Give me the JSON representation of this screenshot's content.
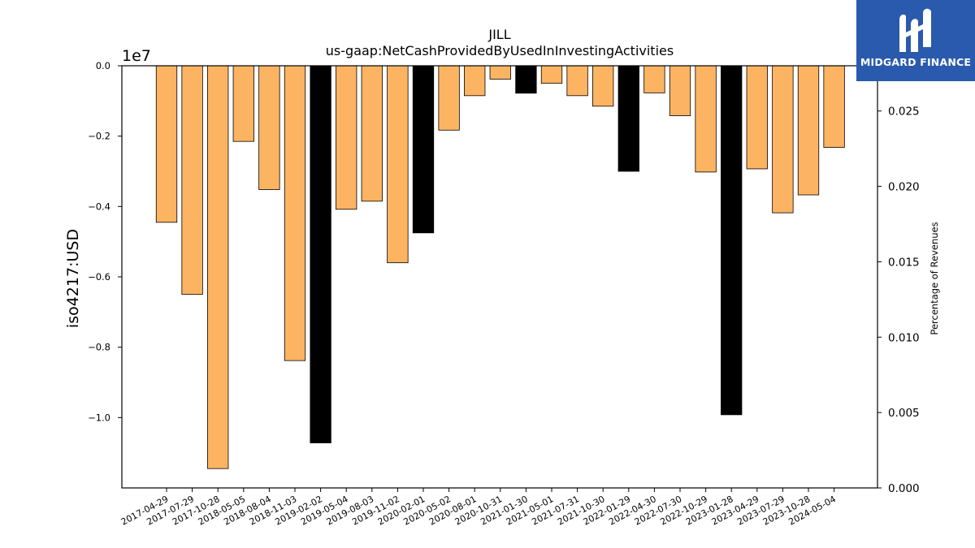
{
  "chart_data": {
    "type": "bar",
    "title": "JILL",
    "subtitle": "us-gaap:NetCashProvidedByUsedInInvestingActivities",
    "ylabel": "iso4217:USD",
    "y2label": "Percentage of Revenues",
    "y_offset_label": "1e7",
    "ylim": [
      -1.2,
      0.0
    ],
    "y_ticks": [
      0.0,
      -0.2,
      -0.4,
      -0.6,
      -0.8,
      -1.0
    ],
    "y_tick_labels": [
      "0.0",
      "−0.2",
      "−0.4",
      "−0.6",
      "−0.8",
      "−1.0"
    ],
    "y2lim": [
      0.0,
      0.028
    ],
    "y2_ticks": [
      0.0,
      0.005,
      0.01,
      0.015,
      0.02,
      0.025
    ],
    "y2_tick_labels": [
      "0.000",
      "0.005",
      "0.010",
      "0.015",
      "0.020",
      "0.025"
    ],
    "grid": false,
    "categories": [
      "2017-04-29",
      "2017-07-29",
      "2017-10-28",
      "2018-05-05",
      "2018-08-04",
      "2018-11-03",
      "2019-02-02",
      "2019-05-04",
      "2019-08-03",
      "2019-11-02",
      "2020-02-01",
      "2020-05-02",
      "2020-08-01",
      "2020-10-31",
      "2021-01-30",
      "2021-05-01",
      "2021-07-31",
      "2021-10-30",
      "2022-01-29",
      "2022-04-30",
      "2022-07-30",
      "2022-10-29",
      "2023-01-28",
      "2023-04-29",
      "2023-07-29",
      "2023-10-28",
      "2024-05-04"
    ],
    "values": [
      -0.445,
      -0.65,
      -1.145,
      -0.215,
      -0.352,
      -0.838,
      -1.072,
      -0.408,
      -0.385,
      -0.56,
      -0.475,
      -0.183,
      -0.085,
      -0.038,
      -0.078,
      -0.05,
      -0.085,
      -0.115,
      -0.3,
      -0.077,
      -0.142,
      -0.302,
      -0.992,
      -0.293,
      -0.418,
      -0.367,
      -0.232
    ],
    "annual_flags": [
      false,
      false,
      false,
      false,
      false,
      false,
      true,
      false,
      false,
      false,
      true,
      false,
      false,
      false,
      true,
      false,
      false,
      false,
      true,
      false,
      false,
      false,
      true,
      false,
      false,
      false,
      false
    ],
    "colors": {
      "quarterly": "#fdb462",
      "annual": "#000000",
      "edge": "#000000"
    }
  },
  "logo": {
    "text": "MIDGARD FINANCE",
    "background": "#2a5aad"
  }
}
